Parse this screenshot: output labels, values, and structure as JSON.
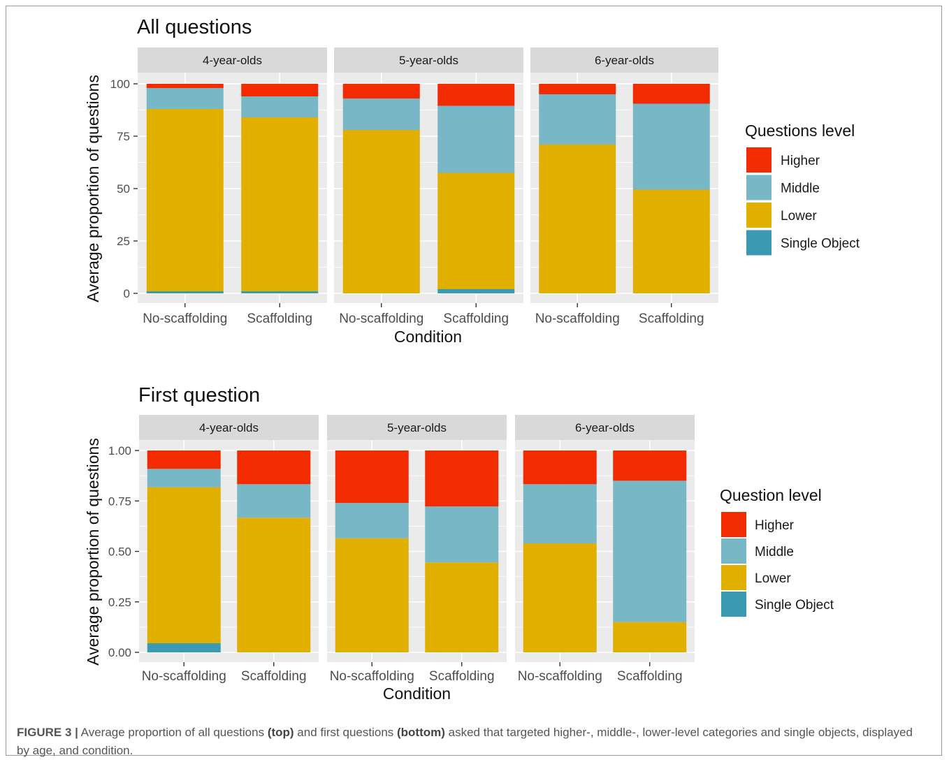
{
  "colors": {
    "Higher": "#f22c00",
    "Middle": "#78b7c5",
    "Lower": "#e1af00",
    "Single Object": "#3b9ab2",
    "panel_bg": "#ebebeb",
    "strip_bg": "#d9d9d9",
    "grid": "#ffffff"
  },
  "caption": {
    "label": "FIGURE 3 |",
    "p1": " Average proportion of all questions ",
    "b1": "(top)",
    "p2": " and first questions ",
    "b2": "(bottom)",
    "p3": " asked that targeted higher-, middle-, lower-level categories and single objects, displayed by age, and condition."
  },
  "chart_data": [
    {
      "type": "bar",
      "stacked": true,
      "title": "All questions",
      "xlabel": "Condition",
      "ylabel": "Average proportion of questions",
      "ylim": [
        0,
        100
      ],
      "yticks": [
        "0",
        "25",
        "50",
        "75",
        "100"
      ],
      "facets": [
        "4-year-olds",
        "5-year-olds",
        "6-year-olds"
      ],
      "categories": [
        "No-scaffolding",
        "Scaffolding"
      ],
      "legend_title": "Questions level",
      "legend_position": "right",
      "series": [
        {
          "name": "Single Object",
          "values": [
            [
              1,
              1
            ],
            [
              0,
              2
            ],
            [
              0,
              0
            ]
          ]
        },
        {
          "name": "Lower",
          "values": [
            [
              87,
              83
            ],
            [
              78,
              55.5
            ],
            [
              71,
              49.5
            ]
          ]
        },
        {
          "name": "Middle",
          "values": [
            [
              10,
              10
            ],
            [
              15,
              32
            ],
            [
              24,
              41
            ]
          ]
        },
        {
          "name": "Higher",
          "values": [
            [
              2,
              6
            ],
            [
              7,
              10.5
            ],
            [
              5,
              9.5
            ]
          ]
        }
      ]
    },
    {
      "type": "bar",
      "stacked": true,
      "title": "First question",
      "xlabel": "Condition",
      "ylabel": "Average proportion of questions",
      "ylim": [
        0,
        1
      ],
      "yticks": [
        "0.00",
        "0.25",
        "0.50",
        "0.75",
        "1.00"
      ],
      "facets": [
        "4-year-olds",
        "5-year-olds",
        "6-year-olds"
      ],
      "categories": [
        "No-scaffolding",
        "Scaffolding"
      ],
      "legend_title": "Question level",
      "legend_position": "right",
      "series": [
        {
          "name": "Single Object",
          "values": [
            [
              0.045,
              0
            ],
            [
              0,
              0
            ],
            [
              0,
              0
            ]
          ]
        },
        {
          "name": "Lower",
          "values": [
            [
              0.773,
              0.667
            ],
            [
              0.565,
              0.445
            ],
            [
              0.54,
              0.15
            ]
          ]
        },
        {
          "name": "Middle",
          "values": [
            [
              0.091,
              0.166
            ],
            [
              0.175,
              0.278
            ],
            [
              0.293,
              0.7
            ]
          ]
        },
        {
          "name": "Higher",
          "values": [
            [
              0.091,
              0.167
            ],
            [
              0.26,
              0.277
            ],
            [
              0.167,
              0.15
            ]
          ]
        }
      ]
    }
  ]
}
